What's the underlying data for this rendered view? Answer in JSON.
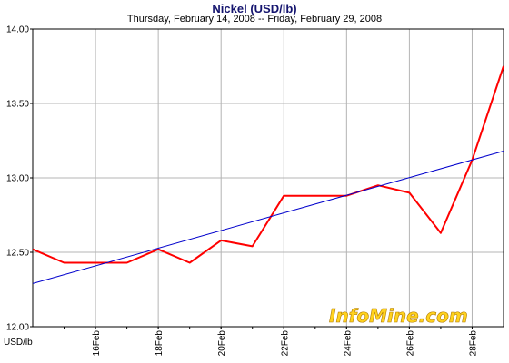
{
  "chart_data": {
    "type": "line",
    "title": "Nickel (USD/lb)",
    "subtitle": "Thursday, February 14, 2008  --  Friday, February 29, 2008",
    "ylabel_unit": "USD/lb",
    "ylim": [
      12.0,
      14.0
    ],
    "yticks": [
      12.0,
      12.5,
      13.0,
      13.5,
      14.0
    ],
    "ytick_labels": [
      "12.00",
      "12.50",
      "13.00",
      "13.50",
      "14.00"
    ],
    "xlim": [
      "2008-02-14",
      "2008-02-29"
    ],
    "xticks": [
      "2008-02-16",
      "2008-02-18",
      "2008-02-20",
      "2008-02-22",
      "2008-02-24",
      "2008-02-26",
      "2008-02-28"
    ],
    "xtick_labels": [
      "16Feb",
      "18Feb",
      "20Feb",
      "22Feb",
      "24Feb",
      "26Feb",
      "28Feb"
    ],
    "grid": true,
    "series": [
      {
        "color": "#ff0000",
        "x": [
          "2008-02-14",
          "2008-02-15",
          "2008-02-16",
          "2008-02-17",
          "2008-02-18",
          "2008-02-19",
          "2008-02-20",
          "2008-02-21",
          "2008-02-22",
          "2008-02-23",
          "2008-02-24",
          "2008-02-25",
          "2008-02-26",
          "2008-02-27",
          "2008-02-28",
          "2008-02-29"
        ],
        "y": [
          12.52,
          12.43,
          12.43,
          12.43,
          12.52,
          12.43,
          12.58,
          12.54,
          12.88,
          12.88,
          12.88,
          12.95,
          12.9,
          12.63,
          13.12,
          13.75
        ]
      },
      {
        "color": "#0000cc",
        "x": [
          "2008-02-14",
          "2008-02-29"
        ],
        "y": [
          12.29,
          13.18
        ]
      }
    ]
  },
  "watermark": "InfoMine.com"
}
